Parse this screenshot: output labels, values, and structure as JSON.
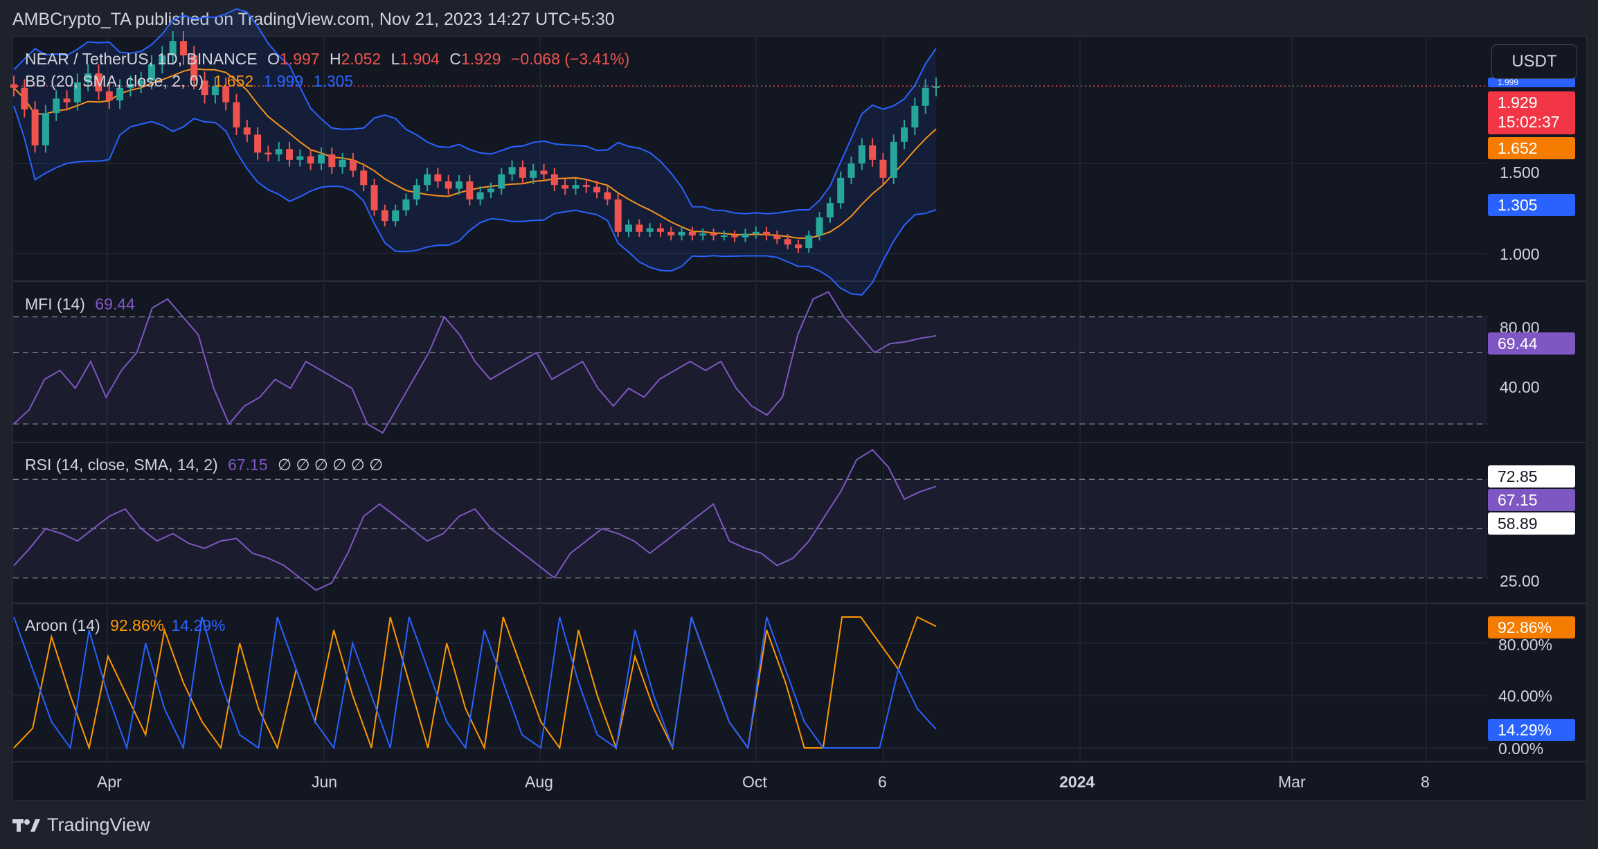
{
  "header": {
    "publisher": "AMBCrypto_TA published on TradingView.com, Nov 21, 2023 14:27 UTC+5:30"
  },
  "currency_button": "USDT",
  "footer": {
    "brand": "TradingView",
    "logo_icon": "tradingview-logo-icon"
  },
  "colors": {
    "up": "#26a69a",
    "down": "#ef5350",
    "basis": "#f7931a",
    "band": "#2962ff",
    "mfi": "#7e57c2",
    "aroon_up": "#ff9800",
    "aroon_down": "#2962ff"
  },
  "chart_data": [
    {
      "type": "candlestick",
      "title": "NEAR / TetherUS, 1D, BINANCE",
      "ohlc": {
        "o_label": "O",
        "o": "1.997",
        "h_label": "H",
        "h": "2.052",
        "l_label": "L",
        "l": "1.904",
        "c_label": "C",
        "c": "1.929",
        "change": "−0.068 (−3.41%)"
      },
      "indicator": {
        "label": "BB (20, SMA, close, 2, 0)",
        "basis": "1.652",
        "upper": "1.999",
        "lower": "1.305"
      },
      "y_ticks": [
        "1.500",
        "1.000"
      ],
      "ylim": [
        0.85,
        2.2
      ],
      "price_tags": {
        "last": "1.929",
        "countdown": "15:02:37",
        "basis": "1.652",
        "lower": "1.305",
        "upper": "1.999"
      },
      "close_series": [
        1.92,
        1.8,
        1.6,
        1.78,
        1.86,
        1.84,
        1.95,
        2.0,
        1.9,
        1.85,
        1.92,
        1.94,
        1.96,
        2.05,
        2.1,
        2.18,
        2.1,
        1.96,
        1.88,
        1.93,
        1.84,
        1.7,
        1.66,
        1.56,
        1.55,
        1.58,
        1.52,
        1.54,
        1.5,
        1.55,
        1.48,
        1.52,
        1.46,
        1.38,
        1.24,
        1.18,
        1.24,
        1.3,
        1.38,
        1.44,
        1.4,
        1.36,
        1.4,
        1.3,
        1.34,
        1.36,
        1.44,
        1.48,
        1.42,
        1.46,
        1.44,
        1.38,
        1.36,
        1.38,
        1.37,
        1.34,
        1.3,
        1.12,
        1.16,
        1.12,
        1.14,
        1.12,
        1.1,
        1.12,
        1.1,
        1.11,
        1.1,
        1.1,
        1.09,
        1.11,
        1.12,
        1.1,
        1.08,
        1.05,
        1.03,
        1.1,
        1.2,
        1.28,
        1.42,
        1.5,
        1.6,
        1.52,
        1.42,
        1.62,
        1.7,
        1.82,
        1.92,
        1.93
      ]
    },
    {
      "type": "line",
      "title": "MFI (14)",
      "value": "69.44",
      "y_ticks": [
        "80.00",
        "40.00"
      ],
      "bands": [
        80,
        60,
        20
      ],
      "ylim": [
        10,
        100
      ],
      "series": [
        {
          "values": [
            20,
            28,
            45,
            50,
            40,
            55,
            35,
            50,
            60,
            85,
            90,
            80,
            70,
            40,
            20,
            30,
            35,
            45,
            40,
            55,
            50,
            45,
            40,
            20,
            15,
            30,
            45,
            60,
            80,
            70,
            55,
            45,
            50,
            55,
            60,
            45,
            50,
            55,
            40,
            30,
            40,
            35,
            45,
            50,
            55,
            50,
            55,
            40,
            30,
            25,
            35,
            70,
            90,
            94,
            80,
            70,
            60,
            65,
            66,
            68,
            69.44
          ]
        }
      ]
    },
    {
      "type": "line",
      "title": "RSI (14, close, SMA, 14, 2)",
      "value": "67.15",
      "extra": "∅ ∅ ∅ ∅ ∅ ∅",
      "y_ticks": [
        "25.00"
      ],
      "bands": [
        70,
        50,
        30
      ],
      "ylim": [
        20,
        85
      ],
      "tags": [
        "72.85",
        "67.15",
        "58.89"
      ],
      "series": [
        {
          "name": "RSI",
          "values": [
            35,
            42,
            50,
            48,
            45,
            50,
            55,
            58,
            50,
            45,
            48,
            44,
            42,
            45,
            46,
            40,
            38,
            35,
            30,
            25,
            28,
            40,
            55,
            60,
            55,
            50,
            45,
            48,
            55,
            58,
            50,
            45,
            40,
            35,
            30,
            40,
            45,
            50,
            48,
            45,
            40,
            45,
            50,
            55,
            60,
            45,
            42,
            40,
            35,
            38,
            45,
            55,
            65,
            78,
            82,
            75,
            62,
            65,
            67.15
          ]
        }
      ]
    },
    {
      "type": "line",
      "title": "Aroon (14)",
      "value_up": "92.86%",
      "value_down": "14.29%",
      "y_ticks": [
        "80.00%",
        "40.00%",
        "0.00%"
      ],
      "ylim": [
        0,
        100
      ],
      "series": [
        {
          "name": "Aroon Up",
          "values": [
            0,
            15,
            85,
            40,
            0,
            70,
            40,
            10,
            90,
            50,
            20,
            0,
            80,
            30,
            0,
            60,
            20,
            90,
            40,
            0,
            100,
            50,
            0,
            80,
            30,
            0,
            100,
            60,
            20,
            0,
            90,
            40,
            0,
            70,
            30,
            0,
            100,
            60,
            20,
            0,
            90,
            50,
            0,
            0,
            100,
            100,
            80,
            60,
            100,
            92.86
          ]
        },
        {
          "name": "Aroon Down",
          "values": [
            100,
            60,
            20,
            0,
            90,
            40,
            0,
            80,
            30,
            0,
            100,
            50,
            10,
            0,
            100,
            60,
            20,
            0,
            80,
            40,
            0,
            100,
            60,
            20,
            0,
            90,
            50,
            10,
            0,
            100,
            50,
            10,
            0,
            90,
            40,
            0,
            100,
            60,
            20,
            0,
            100,
            60,
            20,
            0,
            0,
            0,
            0,
            60,
            30,
            14.29
          ]
        }
      ]
    }
  ],
  "x_ticks": [
    "Apr",
    "Jun",
    "Aug",
    "Oct",
    "6",
    "2024",
    "Mar",
    "8"
  ]
}
